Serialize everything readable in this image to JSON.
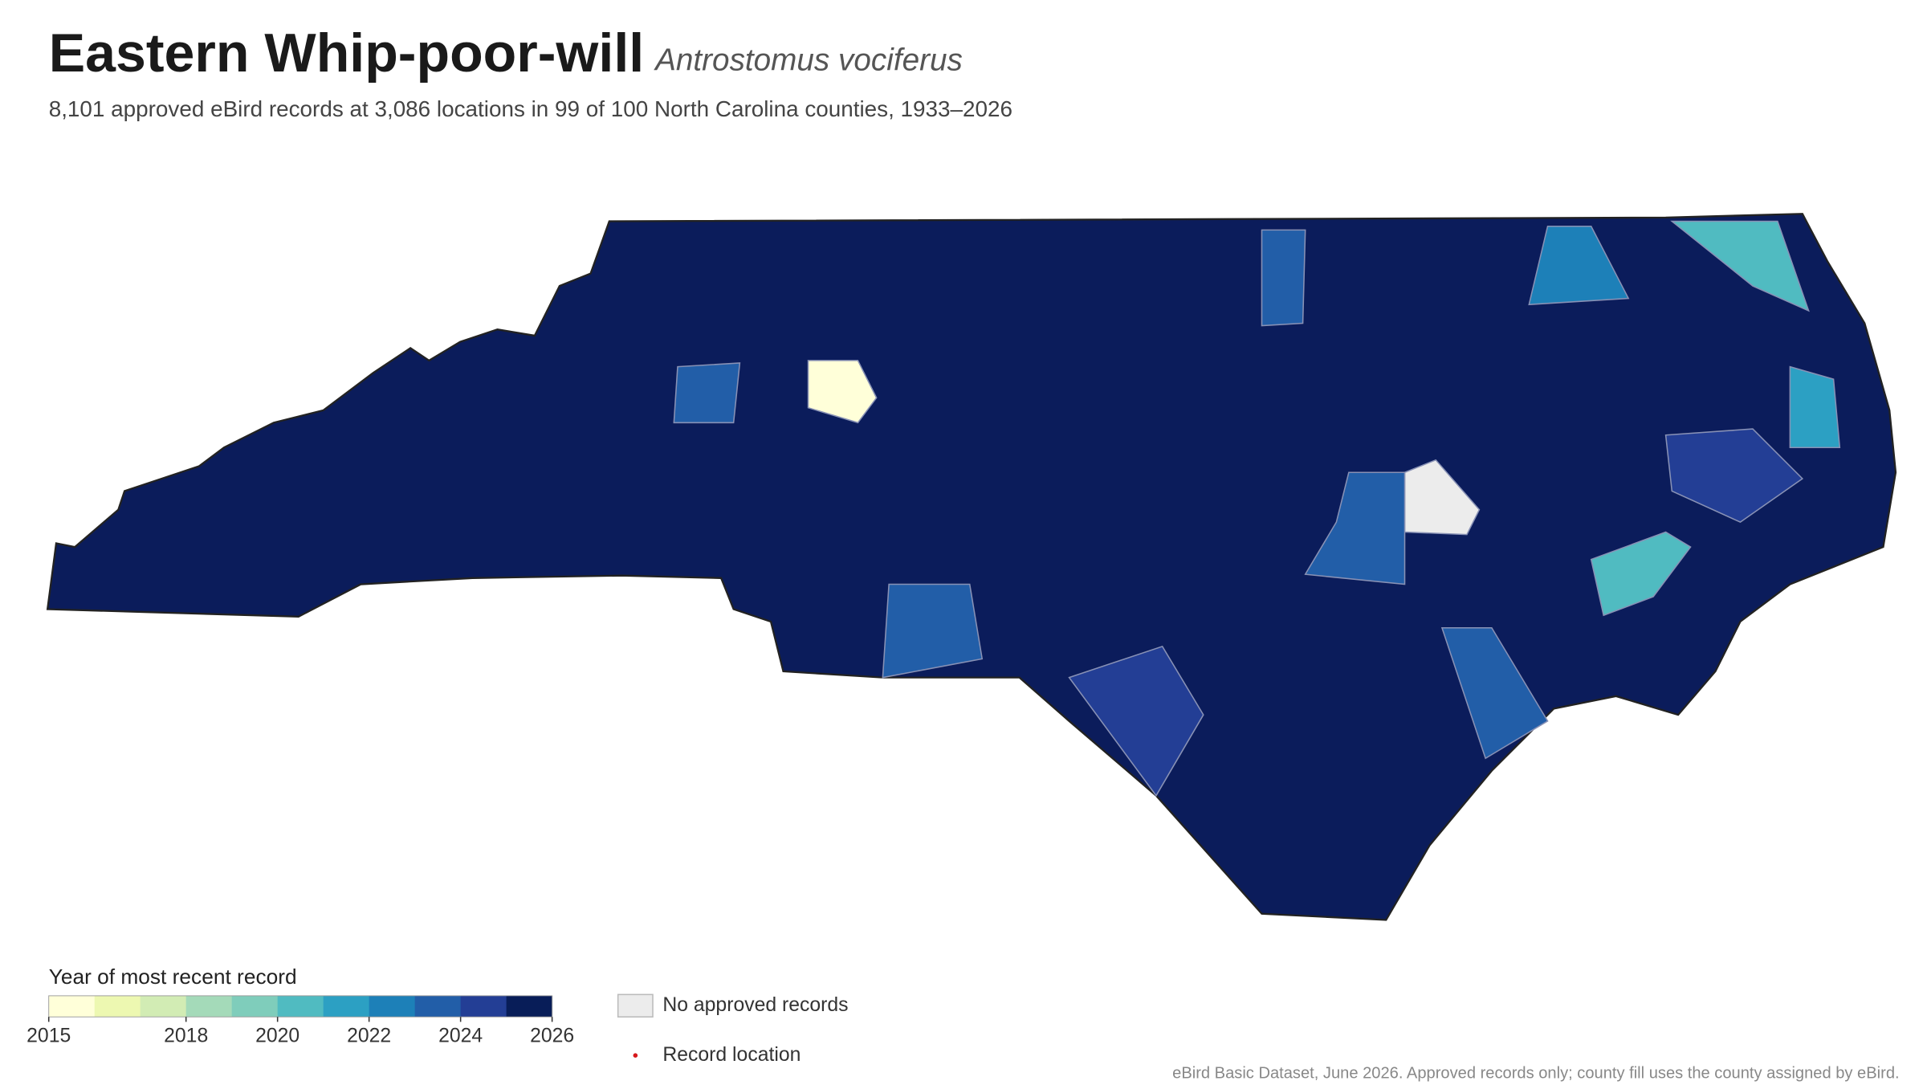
{
  "header": {
    "title": "Eastern Whip-poor-will",
    "scientific_name": "Antrostomus vociferus",
    "subtitle": "8,101 approved eBird records at 3,086 locations in 99 of 100 North Carolina counties, 1933–2026"
  },
  "legend": {
    "title": "Year of most recent record",
    "lim": [
      2015,
      2026
    ],
    "ticks": [
      2015,
      2018,
      2020,
      2022,
      2024,
      2026
    ],
    "colors": [
      "#ffffd9",
      "#edf8b1",
      "#d2ecb4",
      "#a4dab9",
      "#7fcdbb",
      "#50bbc1",
      "#2ca0c3",
      "#1d80b8",
      "#225ea8",
      "#233e95",
      "#081d58"
    ],
    "no_records_label": "No approved records",
    "record_location_label": "Record location"
  },
  "footnote": "eBird Basic Dataset, June 2026. Approved records only; county fill uses the county assigned by eBird."
}
